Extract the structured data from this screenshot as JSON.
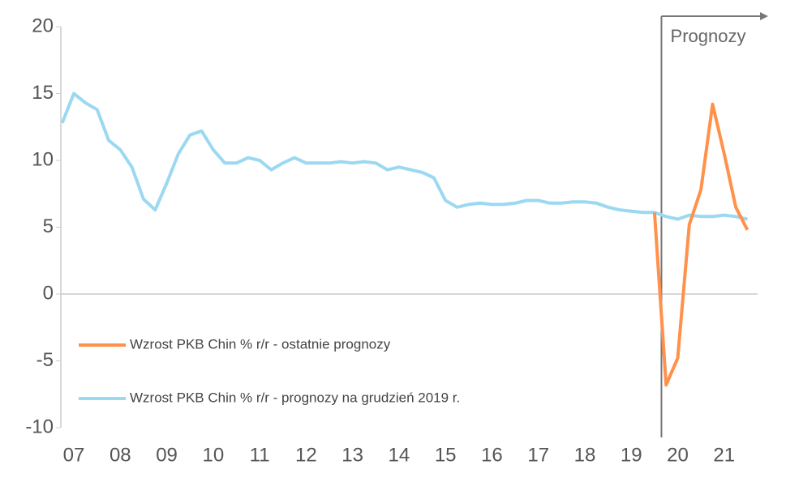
{
  "chart_data": {
    "type": "line",
    "annotation": {
      "text": "Prognozy",
      "x": 2020.15
    },
    "x": [
      2007.25,
      2007.5,
      2007.75,
      2008,
      2008.25,
      2008.5,
      2008.75,
      2009,
      2009.25,
      2009.5,
      2009.75,
      2010,
      2010.25,
      2010.5,
      2010.75,
      2011,
      2011.25,
      2011.5,
      2011.75,
      2012,
      2012.25,
      2012.5,
      2012.75,
      2013,
      2013.25,
      2013.5,
      2013.75,
      2014,
      2014.25,
      2014.5,
      2014.75,
      2015,
      2015.25,
      2015.5,
      2015.75,
      2016,
      2016.25,
      2016.5,
      2016.75,
      2017,
      2017.25,
      2017.5,
      2017.75,
      2018,
      2018.25,
      2018.5,
      2018.75,
      2019,
      2019.25,
      2019.5,
      2019.75,
      2020,
      2020.25,
      2020.5,
      2020.75,
      2021,
      2021.25,
      2021.5,
      2021.75,
      2022
    ],
    "series": [
      {
        "name": "Wzrost PKB Chin % r/r - ostatnie prognozy",
        "color": "#ff914a",
        "values": [
          null,
          null,
          null,
          null,
          null,
          null,
          null,
          null,
          null,
          null,
          null,
          null,
          null,
          null,
          null,
          null,
          null,
          null,
          null,
          null,
          null,
          null,
          null,
          null,
          null,
          null,
          null,
          null,
          null,
          null,
          null,
          null,
          null,
          null,
          null,
          null,
          null,
          null,
          null,
          null,
          null,
          null,
          null,
          null,
          null,
          null,
          null,
          null,
          null,
          null,
          null,
          6.1,
          -6.8,
          -4.8,
          5.2,
          7.8,
          14.2,
          10.5,
          6.5,
          4.8
        ]
      },
      {
        "name": "Wzrost PKB Chin % r/r - prognozy na grudzień 2019 r.",
        "color": "#9bd8f2",
        "values": [
          12.8,
          15.0,
          14.3,
          13.8,
          11.5,
          10.8,
          9.5,
          7.1,
          6.3,
          8.3,
          10.5,
          11.9,
          12.2,
          10.8,
          9.8,
          9.8,
          10.2,
          10.0,
          9.3,
          9.8,
          10.2,
          9.8,
          9.8,
          9.8,
          9.9,
          9.8,
          9.9,
          9.8,
          9.3,
          9.5,
          9.3,
          9.1,
          8.7,
          7.0,
          6.5,
          6.7,
          6.8,
          6.7,
          6.7,
          6.8,
          7.0,
          7.0,
          6.8,
          6.8,
          6.9,
          6.9,
          6.8,
          6.5,
          6.3,
          6.2,
          6.1,
          6.1,
          5.8,
          5.6,
          5.9,
          5.8,
          5.8,
          5.9,
          5.8,
          5.6
        ]
      }
    ],
    "xlim": [
      2007.22,
      2022.22
    ],
    "xticks": [
      {
        "value": 2007.5,
        "label": "07"
      },
      {
        "value": 2008.5,
        "label": "08"
      },
      {
        "value": 2009.5,
        "label": "09"
      },
      {
        "value": 2010.5,
        "label": "10"
      },
      {
        "value": 2011.5,
        "label": "11"
      },
      {
        "value": 2012.5,
        "label": "12"
      },
      {
        "value": 2013.5,
        "label": "13"
      },
      {
        "value": 2014.5,
        "label": "14"
      },
      {
        "value": 2015.5,
        "label": "15"
      },
      {
        "value": 2016.5,
        "label": "16"
      },
      {
        "value": 2017.5,
        "label": "17"
      },
      {
        "value": 2018.5,
        "label": "18"
      },
      {
        "value": 2019.5,
        "label": "19"
      },
      {
        "value": 2020.5,
        "label": "20"
      },
      {
        "value": 2021.5,
        "label": "21"
      }
    ],
    "ylim": [
      -10,
      20
    ],
    "yticks": [
      -10,
      -5,
      0,
      5,
      10,
      15,
      20
    ]
  }
}
